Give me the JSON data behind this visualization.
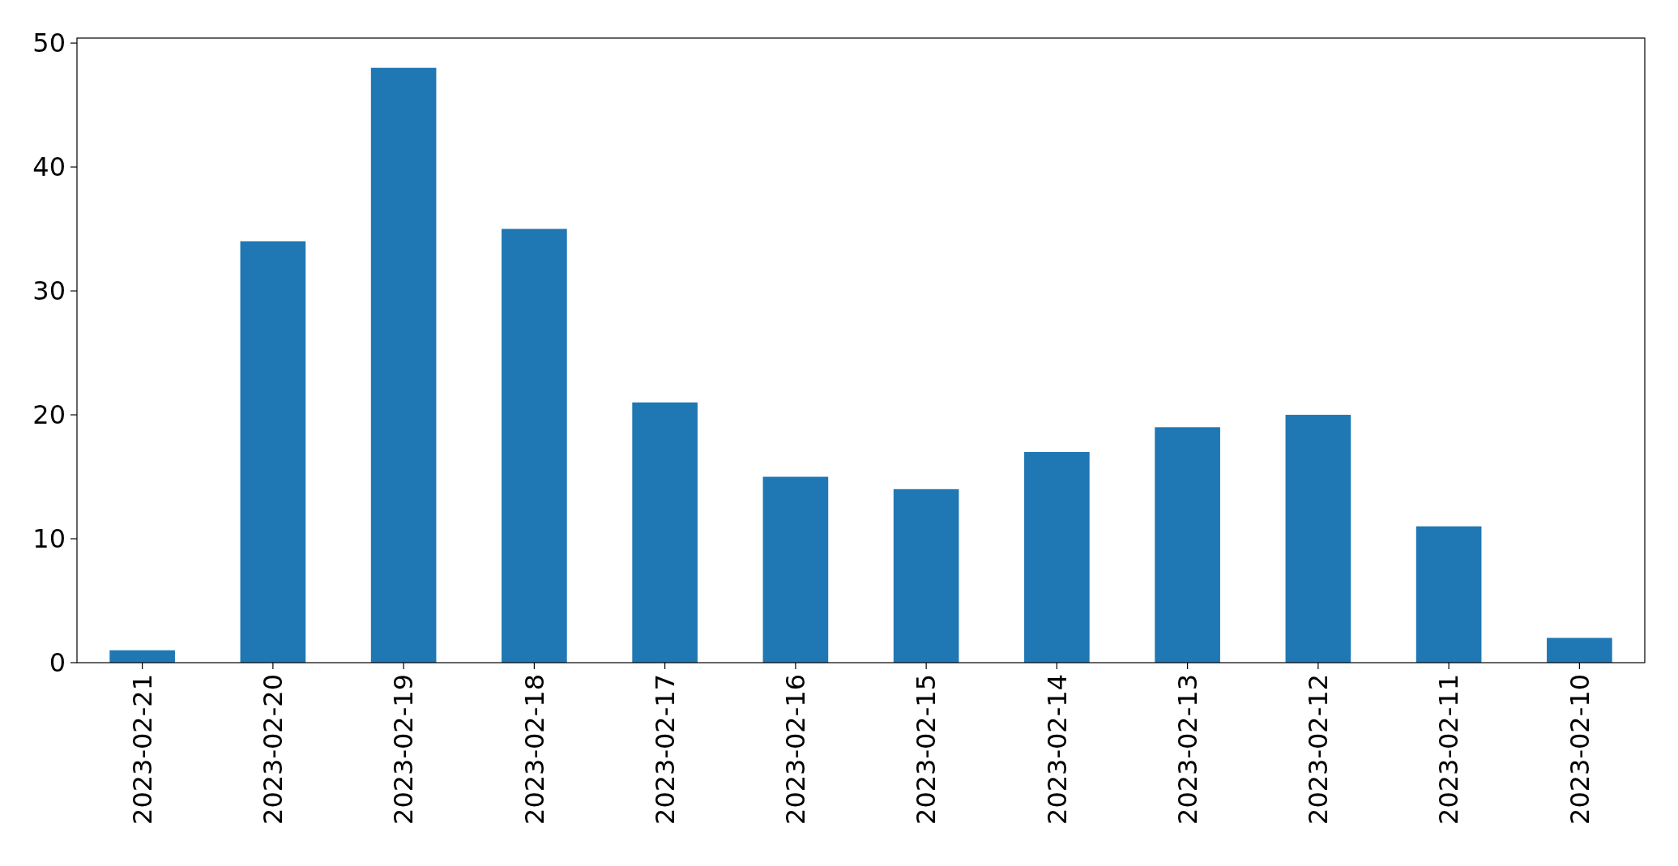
{
  "chart_data": {
    "type": "bar",
    "categories": [
      "2023-02-21",
      "2023-02-20",
      "2023-02-19",
      "2023-02-18",
      "2023-02-17",
      "2023-02-16",
      "2023-02-15",
      "2023-02-14",
      "2023-02-13",
      "2023-02-12",
      "2023-02-11",
      "2023-02-10"
    ],
    "values": [
      1,
      34,
      48,
      35,
      21,
      15,
      14,
      17,
      19,
      20,
      11,
      2
    ],
    "color": "#1f77b4",
    "ylim": [
      0,
      50.4
    ],
    "yticks": [
      0,
      10,
      20,
      30,
      40,
      50
    ],
    "grid": false
  }
}
